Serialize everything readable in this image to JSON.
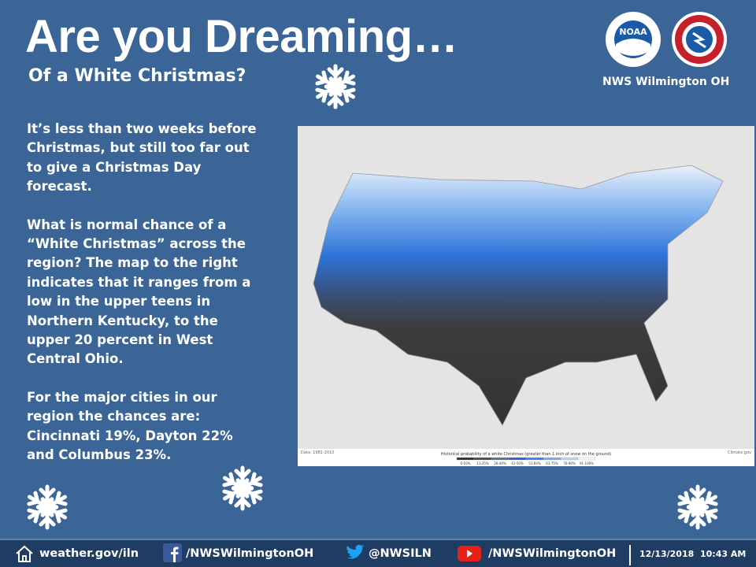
{
  "header": {
    "title": "Are you Dreaming…",
    "subtitle": "Of a White Christmas?",
    "office": "NWS Wilmington OH",
    "logo": "NOAA"
  },
  "body": {
    "paragraphs": [
      "It’s less than two weeks before Christmas, but still too far out to give a Christmas Day forecast.",
      "What is normal chance of a “White Christmas” across the region? The map to the right indicates that it ranges from a low in the upper teens in Northern Kentucky, to the upper 20 percent in West Central Ohio.",
      "For the major cities in our region the chances are: Cincinnati 19%, Dayton 22% and Columbus 23%."
    ]
  },
  "map": {
    "legend_title": "Historical probability of a white Christmas (greater than 1 inch of snow on the ground)",
    "legend_labels": [
      "0-10%",
      "11-25%",
      "26-40%",
      "41-50%",
      "51-60%",
      "61-75%",
      "76-90%",
      "91-100%"
    ],
    "source": "Data: 1981-2010",
    "credit": "Climate.gov"
  },
  "footer": {
    "website": "weather.gov/iln",
    "facebook": "/NWSWilmingtonOH",
    "twitter": "@NWSILN",
    "youtube": "/NWSWilmingtonOH",
    "date": "12/13/2018",
    "time": "10:43 AM"
  }
}
